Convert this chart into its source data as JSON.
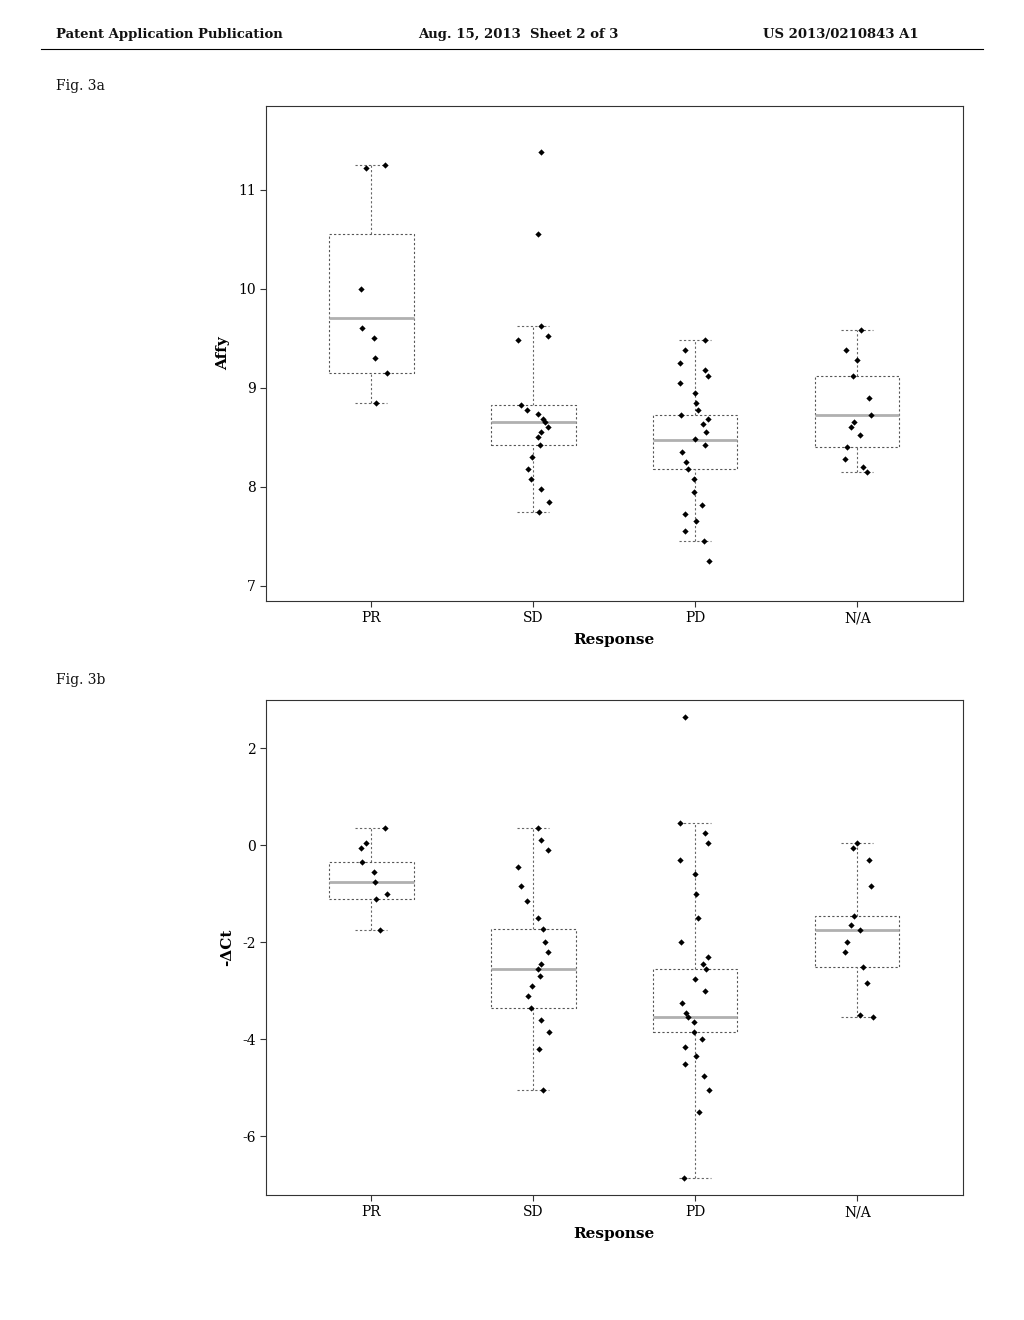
{
  "header_left": "Patent Application Publication",
  "header_mid": "Aug. 15, 2013  Sheet 2 of 3",
  "header_right": "US 2013/0210843 A1",
  "fig_a_label": "Fig. 3a",
  "fig_b_label": "Fig. 3b",
  "categories": [
    "PR",
    "SD",
    "PD",
    "N/A"
  ],
  "fig_a": {
    "ylabel": "Affy",
    "xlabel": "Response",
    "ylim": [
      6.85,
      11.85
    ],
    "yticks": [
      7,
      8,
      9,
      10,
      11
    ],
    "PR": {
      "median": 9.7,
      "q1": 9.15,
      "q3": 10.55,
      "whisker_low": 8.85,
      "whisker_high": 11.25,
      "points": [
        11.25,
        11.22,
        10.0,
        9.6,
        9.5,
        9.3,
        9.15,
        8.85
      ]
    },
    "SD": {
      "median": 8.65,
      "q1": 8.42,
      "q3": 8.83,
      "whisker_low": 7.75,
      "whisker_high": 9.62,
      "points": [
        11.38,
        10.55,
        9.62,
        9.52,
        9.48,
        8.83,
        8.78,
        8.73,
        8.68,
        8.65,
        8.6,
        8.55,
        8.5,
        8.42,
        8.3,
        8.18,
        8.08,
        7.98,
        7.85,
        7.75
      ]
    },
    "PD": {
      "median": 8.47,
      "q1": 8.18,
      "q3": 8.72,
      "whisker_low": 7.45,
      "whisker_high": 9.48,
      "points": [
        9.48,
        9.38,
        9.25,
        9.18,
        9.12,
        9.05,
        8.95,
        8.85,
        8.78,
        8.72,
        8.68,
        8.63,
        8.55,
        8.48,
        8.42,
        8.35,
        8.25,
        8.18,
        8.08,
        7.95,
        7.82,
        7.72,
        7.65,
        7.55,
        7.45,
        7.25
      ]
    },
    "NA": {
      "median": 8.72,
      "q1": 8.4,
      "q3": 9.12,
      "whisker_low": 8.15,
      "whisker_high": 9.58,
      "points": [
        9.58,
        9.38,
        9.28,
        9.12,
        8.9,
        8.72,
        8.65,
        8.6,
        8.52,
        8.4,
        8.28,
        8.2,
        8.15
      ]
    }
  },
  "fig_b": {
    "ylabel": "-ΔCt",
    "xlabel": "Response",
    "ylim": [
      -7.2,
      3.0
    ],
    "yticks": [
      -6,
      -4,
      -2,
      0,
      2
    ],
    "PR": {
      "median": -0.75,
      "q1": -1.1,
      "q3": -0.35,
      "whisker_low": -1.75,
      "whisker_high": 0.35,
      "points": [
        0.35,
        0.05,
        -0.05,
        -0.35,
        -0.55,
        -0.75,
        -1.0,
        -1.1,
        -1.75
      ]
    },
    "SD": {
      "median": -2.55,
      "q1": -3.35,
      "q3": -1.72,
      "whisker_low": -5.05,
      "whisker_high": 0.35,
      "points": [
        0.35,
        0.1,
        -0.1,
        -0.45,
        -0.85,
        -1.15,
        -1.5,
        -1.72,
        -2.0,
        -2.2,
        -2.45,
        -2.55,
        -2.7,
        -2.9,
        -3.1,
        -3.35,
        -3.6,
        -3.85,
        -4.2,
        -5.05
      ]
    },
    "PD": {
      "median": -3.55,
      "q1": -3.85,
      "q3": -2.55,
      "whisker_low": -6.85,
      "whisker_high": 0.45,
      "points": [
        2.65,
        0.45,
        0.25,
        0.05,
        -0.3,
        -0.6,
        -1.0,
        -1.5,
        -2.0,
        -2.3,
        -2.45,
        -2.55,
        -2.75,
        -3.0,
        -3.25,
        -3.45,
        -3.55,
        -3.65,
        -3.85,
        -4.0,
        -4.15,
        -4.35,
        -4.5,
        -4.75,
        -5.05,
        -5.5,
        -6.85
      ]
    },
    "NA": {
      "median": -1.75,
      "q1": -2.5,
      "q3": -1.45,
      "whisker_low": -3.55,
      "whisker_high": 0.05,
      "points": [
        0.05,
        -0.05,
        -0.3,
        -0.85,
        -1.45,
        -1.65,
        -1.75,
        -2.0,
        -2.2,
        -2.5,
        -2.85,
        -3.5,
        -3.55
      ]
    }
  },
  "box_color": "#ffffff",
  "median_color": "#b0b0b0",
  "background_color": "#ffffff"
}
